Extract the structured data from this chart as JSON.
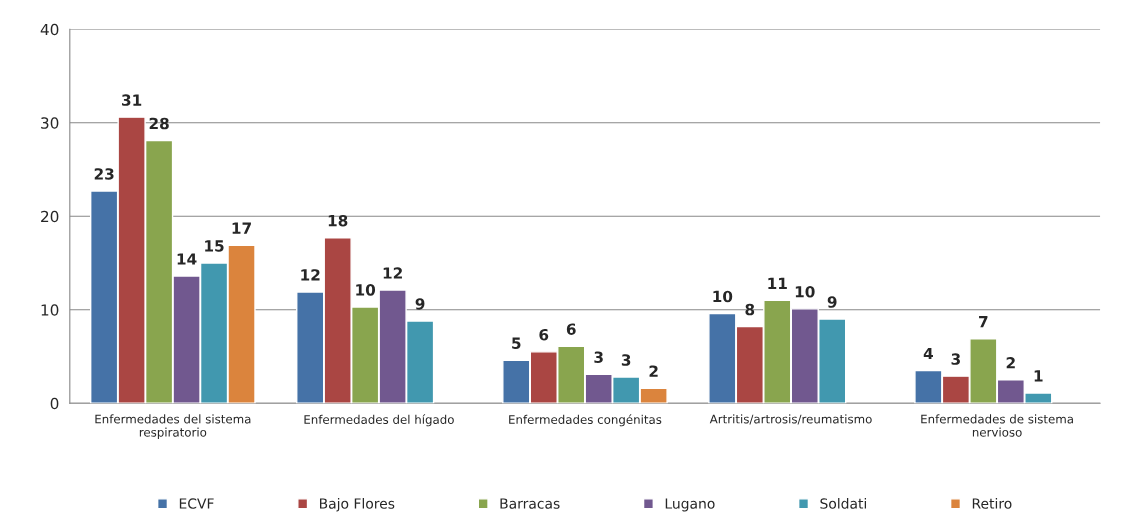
{
  "chart_data": {
    "type": "bar",
    "categories": [
      "Enfermedades del sistema\nrespiratorio",
      "Enfermedades del hígado",
      "Enfermedades congénitas",
      "Artritis/artrosis/reumatismo",
      "Enfermedades de sistema\nnervioso"
    ],
    "series": [
      {
        "name": "ECVF",
        "color": "#4572a7",
        "values": [
          22.7,
          11.9,
          4.6,
          9.6,
          3.5
        ],
        "value_labels": [
          "23",
          "12",
          "5",
          "10",
          "4"
        ]
      },
      {
        "name": "Bajo Flores",
        "color": "#aa4643",
        "values": [
          30.6,
          17.7,
          5.5,
          8.2,
          2.9
        ],
        "value_labels": [
          "31",
          "18",
          "6",
          "8",
          "3"
        ]
      },
      {
        "name": "Barracas",
        "color": "#89a54e",
        "values": [
          28.1,
          10.3,
          6.1,
          11.0,
          6.9
        ],
        "value_labels": [
          "28",
          "10",
          "6",
          "11",
          "7"
        ]
      },
      {
        "name": "Lugano",
        "color": "#71588f",
        "values": [
          13.6,
          12.1,
          3.1,
          10.1,
          2.5
        ],
        "value_labels": [
          "14",
          "12",
          "3",
          "10",
          "2"
        ]
      },
      {
        "name": "Soldati",
        "color": "#4198af",
        "values": [
          15.0,
          8.8,
          2.8,
          9.0,
          1.1
        ],
        "value_labels": [
          "15",
          "9",
          "3",
          "9",
          "1"
        ]
      },
      {
        "name": "Retiro",
        "color": "#db843d",
        "values": [
          16.9,
          null,
          1.6,
          null,
          null
        ],
        "value_labels": [
          "17",
          null,
          "2",
          null,
          null
        ]
      }
    ],
    "ylim": [
      0,
      40
    ],
    "yticks": [
      0,
      10,
      20,
      30,
      40
    ],
    "grid": "y",
    "legend": "bottom"
  }
}
